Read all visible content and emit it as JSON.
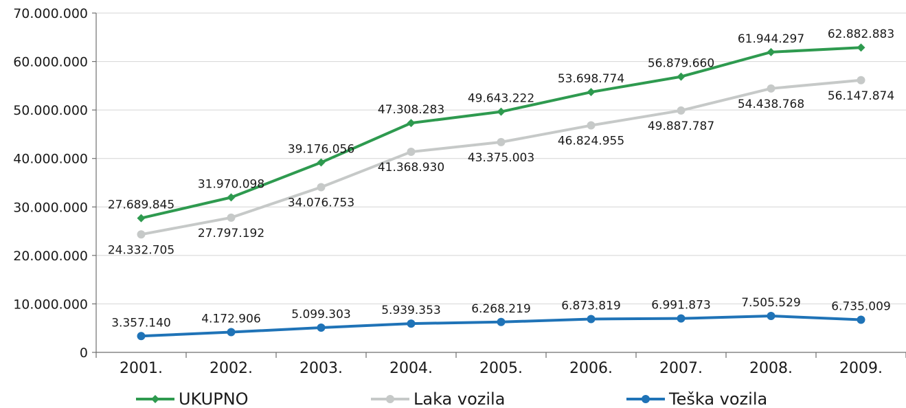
{
  "chart_data": {
    "type": "line",
    "title": "",
    "xlabel": "",
    "ylabel": "",
    "categories": [
      "2001.",
      "2002.",
      "2003.",
      "2004.",
      "2005.",
      "2006.",
      "2007.",
      "2008.",
      "2009."
    ],
    "ylim": [
      0,
      70000000
    ],
    "yticks": [
      {
        "value": 0,
        "label": "0"
      },
      {
        "value": 10000000,
        "label": "10.000.000"
      },
      {
        "value": 20000000,
        "label": "20.000.000"
      },
      {
        "value": 30000000,
        "label": "30.000.000"
      },
      {
        "value": 40000000,
        "label": "40.000.000"
      },
      {
        "value": 50000000,
        "label": "50.000.000"
      },
      {
        "value": 60000000,
        "label": "60.000.000"
      },
      {
        "value": 70000000,
        "label": "70.000.000"
      }
    ],
    "grid": true,
    "legend_position": "bottom",
    "series": [
      {
        "name": "UKUPNO",
        "color": "#2e9a4f",
        "marker": "diamond",
        "label_position": "above",
        "values": [
          27689845,
          31970098,
          39176056,
          47308283,
          49643222,
          53698774,
          56879660,
          61944297,
          62882883
        ],
        "labels": [
          "27.689.845",
          "31.970.098",
          "39.176.056",
          "47.308.283",
          "49.643.222",
          "53.698.774",
          "56.879.660",
          "61.944.297",
          "62.882.883"
        ]
      },
      {
        "name": "Laka vozila",
        "color": "#c6c9c8",
        "marker": "circle",
        "label_position": "below",
        "values": [
          24332705,
          27797192,
          34076753,
          41368930,
          43375003,
          46824955,
          49887787,
          54438768,
          56147874
        ],
        "labels": [
          "24.332.705",
          "27.797.192",
          "34.076.753",
          "41.368.930",
          "43.375.003",
          "46.824.955",
          "49.887.787",
          "54.438.768",
          "56.147.874"
        ]
      },
      {
        "name": "Teška vozila",
        "color": "#1f73b7",
        "marker": "circle",
        "label_position": "above",
        "values": [
          3357140,
          4172906,
          5099303,
          5939353,
          6268219,
          6873819,
          6991873,
          7505529,
          6735009
        ],
        "labels": [
          "3.357.140",
          "4.172.906",
          "5.099.303",
          "5.939.353",
          "6.268.219",
          "6.873.819",
          "6.991.873",
          "7.505.529",
          "6.735.009"
        ]
      }
    ]
  }
}
